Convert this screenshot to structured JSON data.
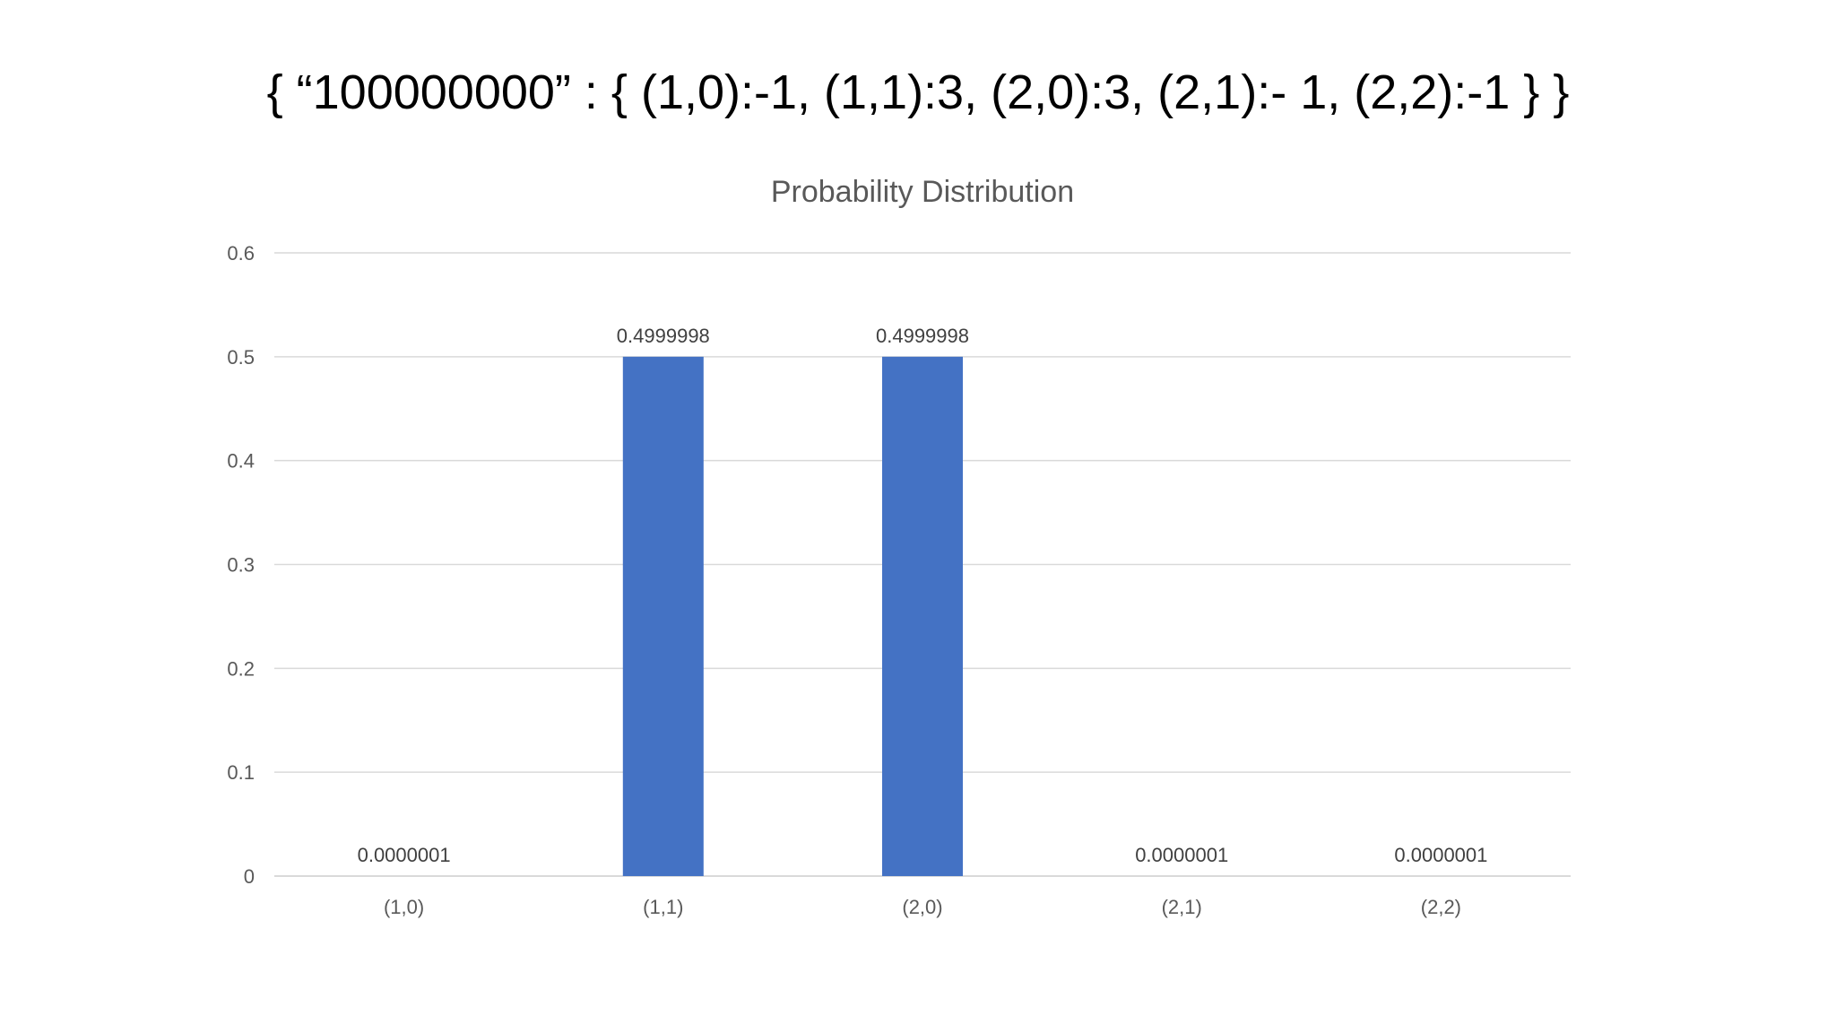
{
  "slide": {
    "title": "{ “100000000” : { (1,0):-1, (1,1):3, (2,0):3, (2,1):- 1, (2,2):-1 } }"
  },
  "chart_data": {
    "type": "bar",
    "title": "Probability Distribution",
    "categories": [
      "(1,0)",
      "(1,1)",
      "(2,0)",
      "(2,1)",
      "(2,2)"
    ],
    "values": [
      1e-07,
      0.4999998,
      0.4999998,
      1e-07,
      1e-07
    ],
    "data_labels": [
      "0.0000001",
      "0.4999998",
      "0.4999998",
      "0.0000001",
      "0.0000001"
    ],
    "xlabel": "",
    "ylabel": "",
    "ylim": [
      0,
      0.6
    ],
    "yticks": [
      0,
      0.1,
      0.2,
      0.3,
      0.4,
      0.5,
      0.6
    ],
    "ytick_labels": [
      "0",
      "0.1",
      "0.2",
      "0.3",
      "0.4",
      "0.5",
      "0.6"
    ],
    "grid": true,
    "legend": "none",
    "bar_color": "#4472c4"
  }
}
